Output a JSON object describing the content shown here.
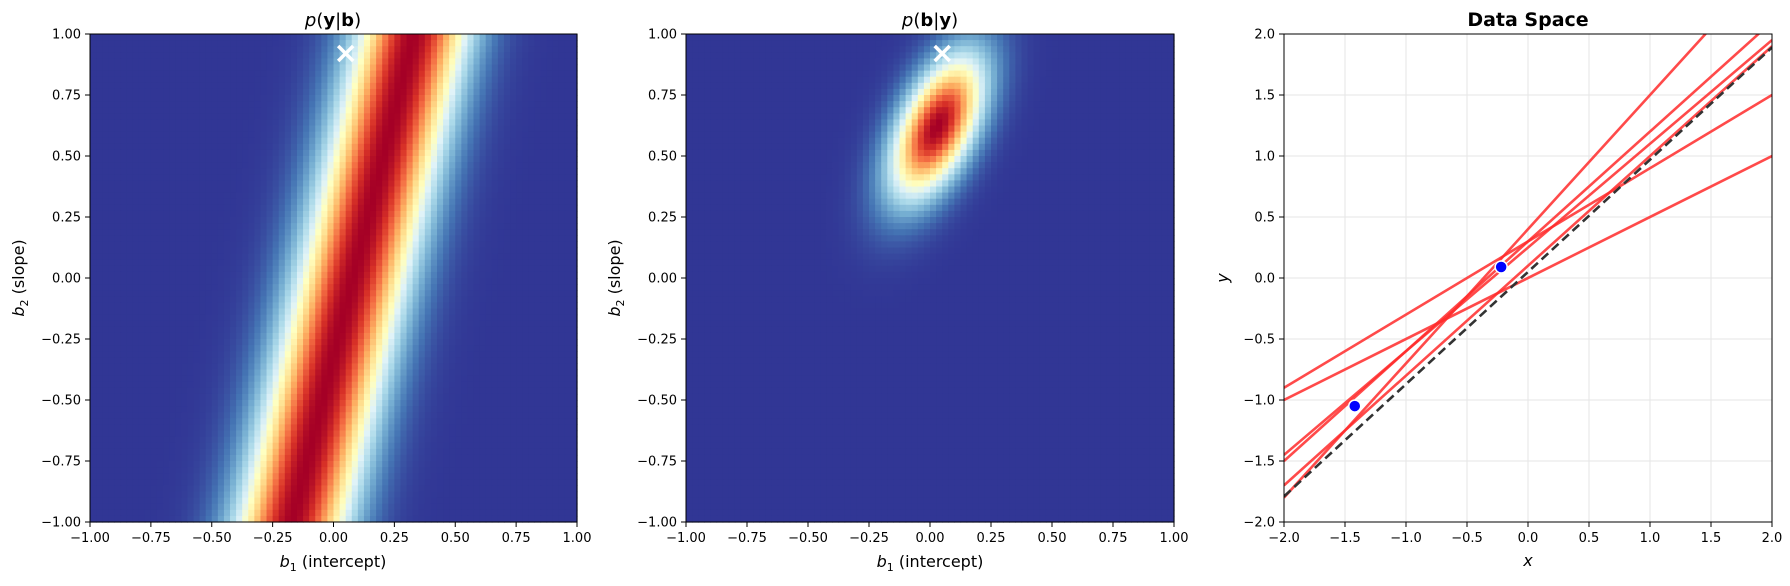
{
  "chart_data": [
    {
      "type": "heatmap",
      "title": "p(y|b)",
      "xlabel": "b1 (intercept)",
      "ylabel": "b2 (slope)",
      "xlim": [
        -1,
        1
      ],
      "ylim": [
        -1,
        1
      ],
      "xticks": [
        "-1.00",
        "-0.75",
        "-0.50",
        "-0.25",
        "0.00",
        "0.25",
        "0.50",
        "0.75",
        "1.00"
      ],
      "yticks": [
        "-1.00",
        "-0.75",
        "-0.50",
        "-0.25",
        "0.00",
        "0.25",
        "0.50",
        "0.75",
        "1.00"
      ],
      "colormap": "RdYlBu_r",
      "density": {
        "kind": "likelihood-band",
        "ridge_b1_at_b2_0": 0.08,
        "ridge_slope_db1_db2": 0.25,
        "width_sd": 0.16
      },
      "marker": {
        "symbol": "x",
        "color": "#ffffff",
        "b1": 0.05,
        "b2": 0.92
      }
    },
    {
      "type": "heatmap",
      "title": "p(b|y)",
      "xlabel": "b1 (intercept)",
      "ylabel": "b2 (slope)",
      "xlim": [
        -1,
        1
      ],
      "ylim": [
        -1,
        1
      ],
      "xticks": [
        "-1.00",
        "-0.75",
        "-0.50",
        "-0.25",
        "0.00",
        "0.25",
        "0.50",
        "0.75",
        "1.00"
      ],
      "yticks": [
        "-1.00",
        "-0.75",
        "-0.50",
        "-0.25",
        "0.00",
        "0.25",
        "0.50",
        "0.75",
        "1.00"
      ],
      "colormap": "RdYlBu_r",
      "density": {
        "kind": "gaussian",
        "mean": [
          0.03,
          0.62
        ],
        "sd_b1": 0.13,
        "sd_b2": 0.2,
        "correlation": 0.55
      },
      "marker": {
        "symbol": "x",
        "color": "#ffffff",
        "b1": 0.05,
        "b2": 0.92
      }
    },
    {
      "type": "line",
      "title": "Data Space",
      "xlabel": "x",
      "ylabel": "y",
      "xlim": [
        -2,
        2
      ],
      "ylim": [
        -2,
        2
      ],
      "xticks": [
        "-2.0",
        "-1.5",
        "-1.0",
        "-0.5",
        "0.0",
        "0.5",
        "1.0",
        "1.5",
        "2.0"
      ],
      "yticks": [
        "-2.0",
        "-1.5",
        "-1.0",
        "-0.5",
        "0.0",
        "0.5",
        "1.0",
        "1.5",
        "2.0"
      ],
      "grid": true,
      "true_line": {
        "intercept": 0.05,
        "slope": 0.92,
        "color": "#333333",
        "style": "dashed"
      },
      "sample_lines": [
        {
          "intercept": 0.0,
          "slope": 0.5
        },
        {
          "intercept": 0.3,
          "slope": 0.6
        },
        {
          "intercept": 0.25,
          "slope": 0.85
        },
        {
          "intercept": 0.1,
          "slope": 0.9
        },
        {
          "intercept": 0.3,
          "slope": 0.9
        },
        {
          "intercept": 0.4,
          "slope": 1.1
        }
      ],
      "sample_color": "#ff2a2a",
      "points": [
        {
          "x": -1.42,
          "y": -1.05
        },
        {
          "x": -0.22,
          "y": 0.09
        }
      ],
      "point_color": "#0000ff"
    }
  ]
}
